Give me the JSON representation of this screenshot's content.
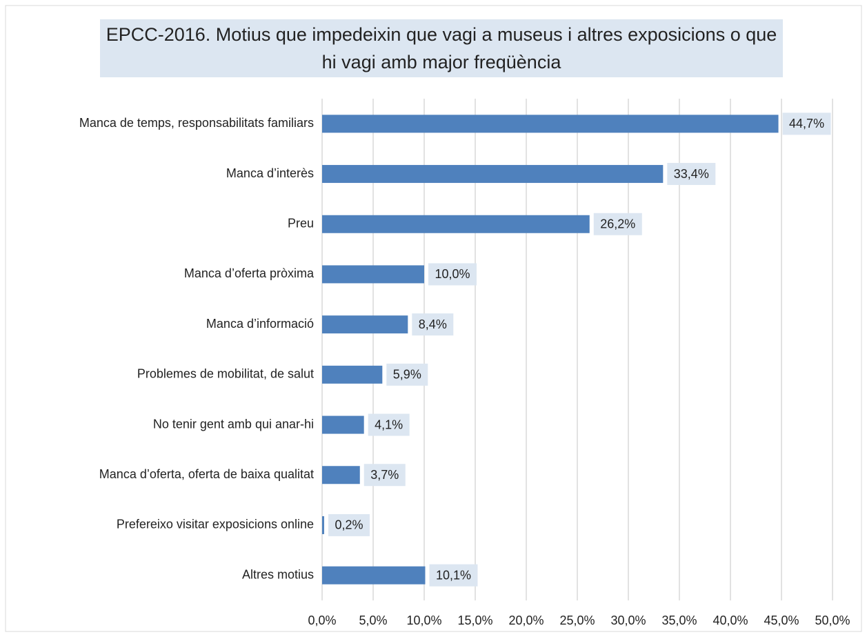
{
  "chart_data": {
    "type": "bar",
    "orientation": "horizontal",
    "title": "EPCC-2016. Motius que impedeixin que vagi a museus i altres exposicions o que hi vagi amb major freqüència",
    "categories": [
      "Manca de temps, responsabilitats familiars",
      "Manca d’interès",
      "Preu",
      "Manca d’oferta pròxima",
      "Manca d’informació",
      "Problemes de mobilitat, de salut",
      "No tenir gent amb qui anar-hi",
      "Manca d’oferta, oferta de baixa qualitat",
      "Prefereixo visitar exposicions online",
      "Altres motius"
    ],
    "values": [
      44.7,
      33.4,
      26.2,
      10.0,
      8.4,
      5.9,
      4.1,
      3.7,
      0.2,
      10.1
    ],
    "value_labels": [
      "44,7%",
      "33,4%",
      "26,2%",
      "10,0%",
      "8,4%",
      "5,9%",
      "4,1%",
      "3,7%",
      "0,2%",
      "10,1%"
    ],
    "color": "#4f81bd",
    "xlim": [
      0,
      50
    ],
    "xticks": [
      {
        "value": 0,
        "label": "0,0%"
      },
      {
        "value": 5,
        "label": "5,0%"
      },
      {
        "value": 10,
        "label": "10,0%"
      },
      {
        "value": 15,
        "label": "15,0%"
      },
      {
        "value": 20,
        "label": "20,0%"
      },
      {
        "value": 25,
        "label": "25,0%"
      },
      {
        "value": 30,
        "label": "30,0%"
      },
      {
        "value": 35,
        "label": "35,0%"
      },
      {
        "value": 40,
        "label": "40,0%"
      },
      {
        "value": 45,
        "label": "45,0%"
      },
      {
        "value": 50,
        "label": "50,0%"
      }
    ],
    "grid": true
  }
}
